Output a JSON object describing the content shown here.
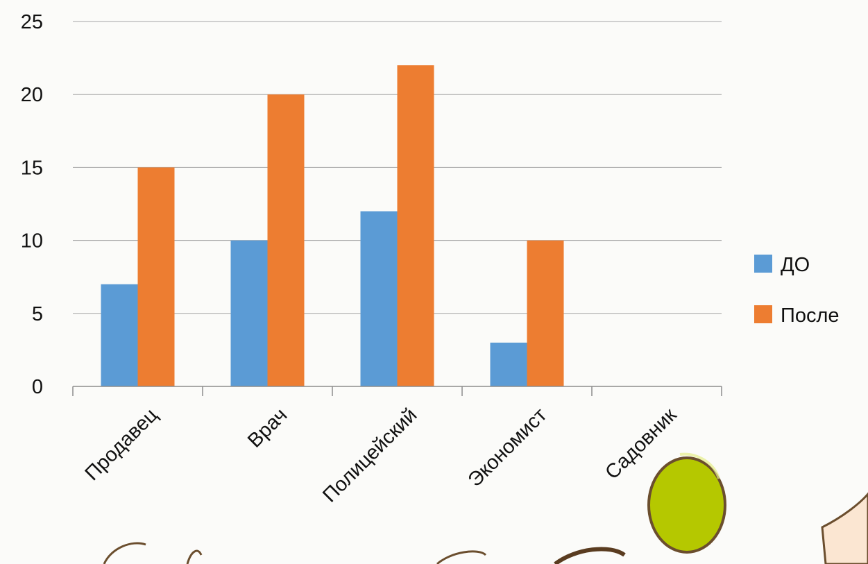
{
  "chart_data": {
    "type": "bar",
    "categories": [
      "Продавец",
      "Врач",
      "Полицейский",
      "Экономист",
      "Садовник"
    ],
    "series": [
      {
        "name": "ДО",
        "values": [
          7,
          10,
          12,
          3,
          0
        ],
        "color": "#5b9bd5"
      },
      {
        "name": "После",
        "values": [
          15,
          20,
          22,
          10,
          0
        ],
        "color": "#ed7d31"
      }
    ],
    "ylim": [
      0,
      25
    ],
    "yticks": [
      0,
      5,
      10,
      15,
      20,
      25
    ],
    "grid": true,
    "legend": "right"
  },
  "colors": {
    "gridline": "#a6a6a6",
    "axis": "#8c8c8c",
    "balloon": "#b5c800",
    "decoration_outline": "#6b4e2e"
  }
}
